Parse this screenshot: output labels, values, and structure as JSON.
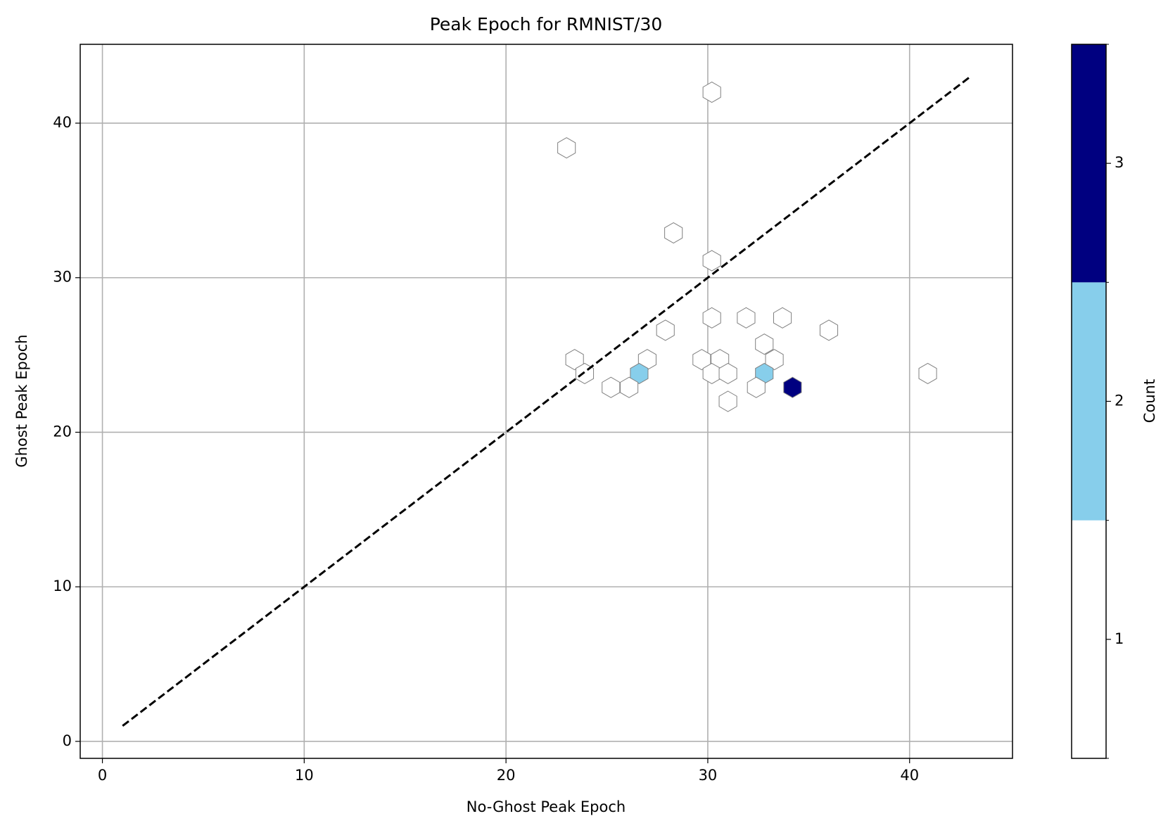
{
  "chart_data": {
    "type": "hexbin",
    "title": "Peak Epoch for RMNIST/30",
    "x_label": "No-Ghost Peak Epoch",
    "y_label": "Ghost Peak Epoch",
    "x": [
      30.2,
      23.0,
      28.3,
      30.2,
      30.2,
      31.9,
      33.7,
      27.9,
      36.0,
      32.8,
      23.4,
      27.0,
      29.7,
      30.6,
      33.3,
      23.9,
      26.6,
      30.2,
      31.0,
      32.8,
      40.9,
      25.2,
      26.1,
      32.4,
      34.2,
      31.0
    ],
    "y": [
      42.0,
      38.4,
      32.9,
      31.1,
      27.4,
      27.4,
      27.4,
      26.6,
      26.6,
      25.7,
      24.7,
      24.7,
      24.7,
      24.7,
      24.7,
      23.8,
      23.8,
      23.8,
      23.8,
      23.8,
      23.8,
      22.9,
      22.9,
      22.9,
      22.9,
      22.0
    ],
    "counts": [
      1,
      1,
      1,
      1,
      1,
      1,
      1,
      1,
      1,
      1,
      1,
      1,
      1,
      1,
      1,
      1,
      2,
      1,
      1,
      2,
      1,
      1,
      1,
      1,
      3,
      1
    ],
    "edge_color": "#808080",
    "reference_line": {
      "x": [
        1,
        43
      ],
      "y": [
        1,
        43
      ],
      "color": "#000000",
      "style": "dashed"
    },
    "xlim": [
      -1.1,
      45.1
    ],
    "ylim": [
      -1.1,
      45.1
    ],
    "xticks": [
      0,
      10,
      20,
      30,
      40
    ],
    "yticks": [
      0,
      10,
      20,
      30,
      40
    ],
    "grid": true,
    "colorbar": {
      "label": "Count",
      "boundaries": [
        0.5,
        1.5,
        2.5,
        3.5
      ],
      "colors": [
        "#ffffff",
        "#87ceeb",
        "#000080"
      ],
      "ticks": [
        1,
        2,
        3
      ]
    }
  }
}
